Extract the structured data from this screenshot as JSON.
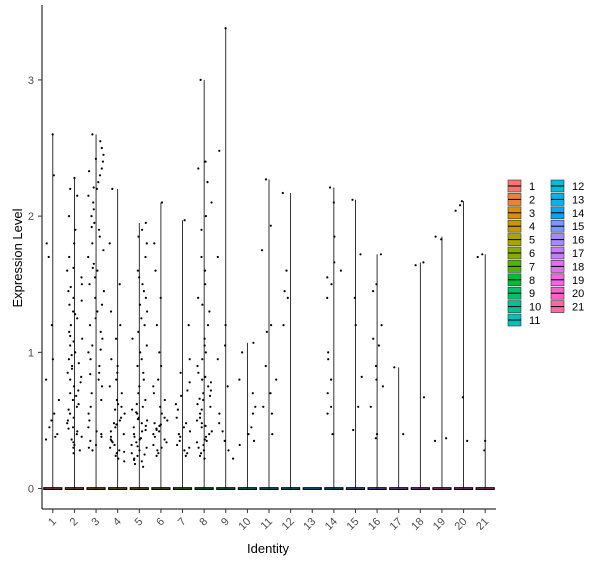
{
  "chart_data": {
    "type": "violin-strip",
    "xlabel": "Identity",
    "ylabel": "Expression Level",
    "categories": [
      "1",
      "2",
      "3",
      "4",
      "5",
      "6",
      "7",
      "8",
      "9",
      "10",
      "11",
      "12",
      "13",
      "14",
      "15",
      "16",
      "17",
      "18",
      "19",
      "20",
      "21"
    ],
    "ylim": [
      -0.15,
      3.55
    ],
    "yticks": [
      0,
      1,
      2,
      3
    ],
    "yticklabels": [
      "0",
      "1",
      "2",
      "3"
    ],
    "legend_position": "right",
    "legend_columns": 2,
    "colors": [
      "#F8766D",
      "#EB8335",
      "#DA8F00",
      "#C49A00",
      "#A9A400",
      "#86AC00",
      "#53B400",
      "#00BA38",
      "#00BE6C",
      "#00C094",
      "#00C0B8",
      "#00BCD8",
      "#00B4EF",
      "#00A6FF",
      "#7997FF",
      "#A58AFF",
      "#C77CFF",
      "#E36EF6",
      "#F564E3",
      "#FF61C9",
      "#FF67A4"
    ],
    "series": [
      {
        "name": "1",
        "max": 2.6,
        "nonzero": [
          2.6,
          2.3,
          1.8,
          1.7,
          1.2,
          0.95,
          0.8,
          0.65,
          0.55,
          0.5,
          0.45,
          0.4,
          0.38,
          0.36
        ]
      },
      {
        "name": "2",
        "max": 2.28,
        "nonzero": [
          2.28,
          2.2,
          2.15,
          2.0,
          1.9,
          1.8,
          1.7,
          1.6,
          1.55,
          1.5,
          1.45,
          1.4,
          1.38,
          1.35,
          1.3,
          1.28,
          1.25,
          1.2,
          1.15,
          1.1,
          1.08,
          1.05,
          1.0,
          0.98,
          0.95,
          0.92,
          0.9,
          0.88,
          0.85,
          0.82,
          0.8,
          0.78,
          0.75,
          0.7,
          0.68,
          0.65,
          0.62,
          0.6,
          0.58,
          0.55,
          0.52,
          0.5,
          0.48,
          0.45,
          0.42,
          0.4,
          0.38,
          0.36,
          0.34,
          0.32,
          0.3,
          0.28,
          0.26,
          1.62,
          1.48,
          1.12,
          0.72,
          0.44
        ]
      },
      {
        "name": "3",
        "max": 2.6,
        "nonzero": [
          2.6,
          2.55,
          2.5,
          2.45,
          2.4,
          2.35,
          2.3,
          2.25,
          2.2,
          2.15,
          2.1,
          2.05,
          2.0,
          1.95,
          1.9,
          1.85,
          1.8,
          1.75,
          1.7,
          1.65,
          1.6,
          1.55,
          1.5,
          1.45,
          1.4,
          1.35,
          1.3,
          1.25,
          1.2,
          1.15,
          1.1,
          1.05,
          1.0,
          0.95,
          0.9,
          0.85,
          0.8,
          0.75,
          0.7,
          0.65,
          0.6,
          0.55,
          0.5,
          0.45,
          0.42,
          0.4,
          0.38,
          0.35,
          0.32,
          0.3,
          0.28,
          2.42,
          2.33,
          2.21,
          1.92,
          1.62,
          1.02,
          0.84
        ]
      },
      {
        "name": "4",
        "max": 2.2,
        "nonzero": [
          2.2,
          1.8,
          1.5,
          1.3,
          1.1,
          0.95,
          0.85,
          0.8,
          0.75,
          0.7,
          0.65,
          0.6,
          0.58,
          0.55,
          0.52,
          0.5,
          0.48,
          0.45,
          0.42,
          0.4,
          0.38,
          0.36,
          0.34,
          0.32,
          0.3,
          0.28,
          0.26,
          0.24,
          0.22,
          0.2,
          0.62,
          0.47,
          0.35,
          0.27,
          1.2,
          0.9
        ]
      },
      {
        "name": "5",
        "max": 1.95,
        "nonzero": [
          1.95,
          1.9,
          1.85,
          1.8,
          1.7,
          1.6,
          1.55,
          1.5,
          1.45,
          1.4,
          1.35,
          1.3,
          1.25,
          1.2,
          1.15,
          1.1,
          1.05,
          1.0,
          0.95,
          0.9,
          0.85,
          0.8,
          0.75,
          0.7,
          0.65,
          0.6,
          0.58,
          0.55,
          0.52,
          0.5,
          0.48,
          0.45,
          0.42,
          0.4,
          0.38,
          0.36,
          0.34,
          0.32,
          0.3,
          0.28,
          0.26,
          0.24,
          0.22,
          0.2,
          0.18,
          0.16,
          0.56,
          0.46,
          0.37,
          0.31,
          0.25,
          0.21,
          0.62,
          0.51,
          0.43
        ]
      },
      {
        "name": "6",
        "max": 2.1,
        "nonzero": [
          2.1,
          1.8,
          1.6,
          1.4,
          1.2,
          1.0,
          0.9,
          0.8,
          0.75,
          0.7,
          0.65,
          0.6,
          0.55,
          0.5,
          0.48,
          0.46,
          0.44,
          0.42,
          0.4,
          0.38,
          0.36,
          0.34,
          0.32,
          0.3,
          0.28,
          0.26,
          0.24,
          0.52,
          0.47,
          0.43
        ]
      },
      {
        "name": "7",
        "max": 1.97,
        "nonzero": [
          1.97,
          1.2,
          0.95,
          0.85,
          0.78,
          0.72,
          0.68,
          0.62,
          0.58,
          0.52,
          0.48,
          0.45,
          0.42,
          0.4,
          0.38,
          0.35,
          0.32,
          0.3,
          0.28,
          0.26,
          0.24
        ]
      },
      {
        "name": "8",
        "max": 3.0,
        "nonzero": [
          3.0,
          2.4,
          2.35,
          2.25,
          2.1,
          2.0,
          1.9,
          1.7,
          1.6,
          1.5,
          1.4,
          1.35,
          1.3,
          1.2,
          1.1,
          1.05,
          1.0,
          0.95,
          0.9,
          0.85,
          0.8,
          0.78,
          0.75,
          0.72,
          0.7,
          0.68,
          0.65,
          0.62,
          0.6,
          0.58,
          0.55,
          0.52,
          0.5,
          0.48,
          0.45,
          0.42,
          0.4,
          0.38,
          0.36,
          0.34,
          0.32,
          0.3,
          0.28,
          0.26,
          0.24,
          0.22,
          0.82,
          0.66,
          0.46,
          0.35
        ]
      },
      {
        "name": "9",
        "max": 3.38,
        "nonzero": [
          3.38,
          2.48,
          1.7,
          1.2,
          1.05,
          0.95,
          0.75,
          0.55,
          0.48,
          0.42,
          0.35,
          0.28,
          0.22
        ]
      },
      {
        "name": "10",
        "max": 1.07,
        "nonzero": [
          1.07,
          1.0,
          0.8,
          0.7,
          0.6,
          0.55,
          0.45,
          0.4,
          0.35,
          0.32
        ]
      },
      {
        "name": "11",
        "max": 2.27,
        "nonzero": [
          2.27,
          1.93,
          1.75,
          1.2,
          1.15,
          0.9,
          0.8,
          0.7,
          0.6,
          0.55,
          0.4
        ]
      },
      {
        "name": "12",
        "max": 2.17,
        "nonzero": [
          2.17,
          1.6,
          1.45,
          1.4,
          1.2
        ]
      },
      {
        "name": "13",
        "max": 0,
        "nonzero": []
      },
      {
        "name": "14",
        "max": 2.21,
        "nonzero": [
          2.21,
          2.1,
          1.85,
          1.66,
          1.6,
          1.55,
          1.5,
          1.4,
          1.0,
          0.95,
          0.8,
          0.7,
          0.6,
          0.55,
          0.4
        ]
      },
      {
        "name": "15",
        "max": 2.12,
        "nonzero": [
          2.12,
          1.72,
          1.4,
          1.2,
          0.82,
          0.6,
          0.43
        ]
      },
      {
        "name": "16",
        "max": 1.72,
        "nonzero": [
          1.72,
          1.5,
          1.45,
          1.2,
          1.1,
          1.05,
          0.9,
          0.8,
          0.75,
          0.6,
          0.4,
          0.37
        ]
      },
      {
        "name": "17",
        "max": 0.89,
        "nonzero": [
          0.89,
          0.4
        ]
      },
      {
        "name": "18",
        "max": 1.66,
        "nonzero": [
          1.66,
          1.64,
          0.67
        ]
      },
      {
        "name": "19",
        "max": 1.85,
        "nonzero": [
          1.85,
          1.83,
          0.37,
          0.35
        ]
      },
      {
        "name": "20",
        "max": 2.11,
        "nonzero": [
          2.11,
          2.08,
          2.04,
          0.67,
          0.35
        ]
      },
      {
        "name": "21",
        "max": 1.72,
        "nonzero": [
          1.72,
          1.7,
          0.35,
          0.28
        ]
      }
    ]
  }
}
